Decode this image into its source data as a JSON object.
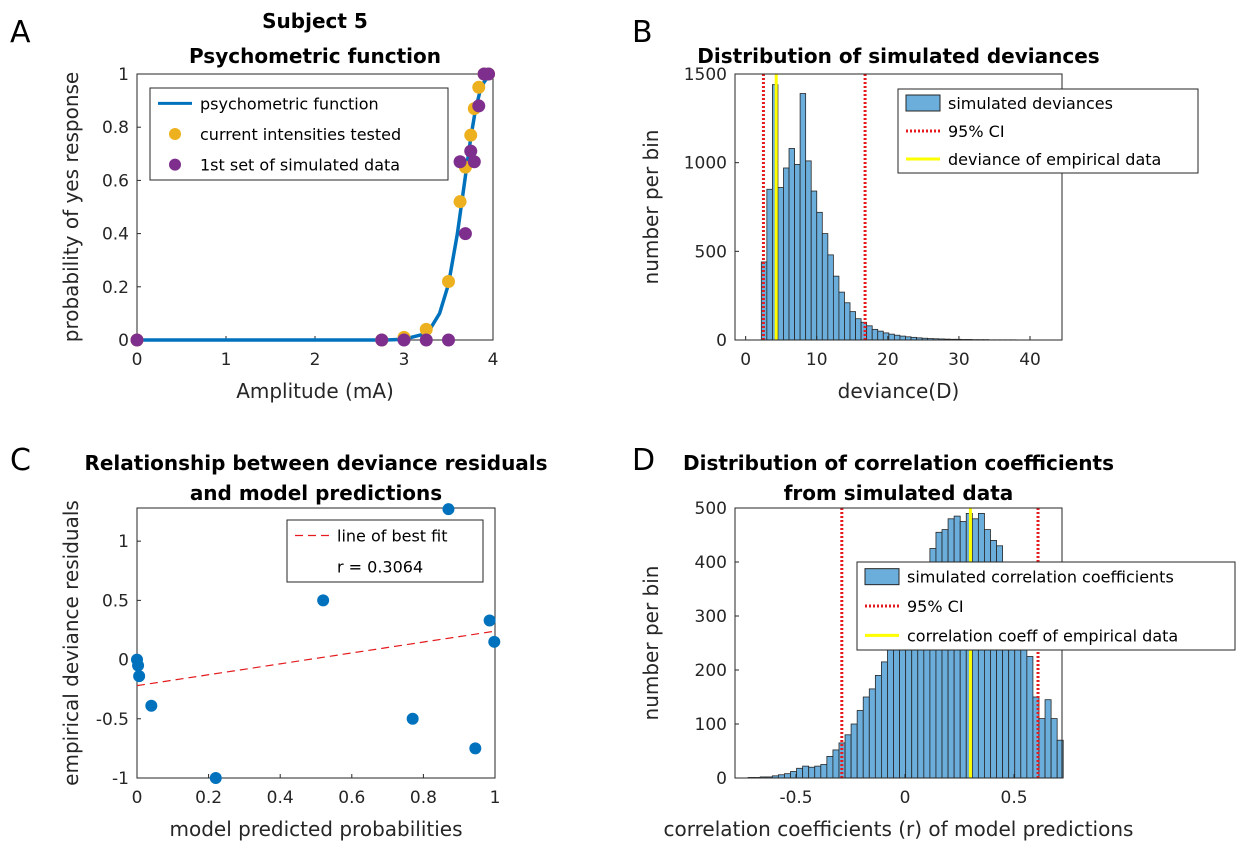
{
  "chart_data": [
    {
      "panel": "A",
      "type": "scatter",
      "title": [
        "Subject 5",
        "Psychometric function"
      ],
      "xlabel": "Amplitude (mA)",
      "ylabel": "probability of yes response",
      "xlim": [
        0,
        4
      ],
      "ylim": [
        0,
        1
      ],
      "xticks": [
        "0",
        "1",
        "2",
        "3",
        "4"
      ],
      "yticks": [
        "0",
        "0.2",
        "0.4",
        "0.6",
        "0.8",
        "1"
      ],
      "legend_position": "top-left",
      "colors": {
        "curve": "#0072BD",
        "tested": "#EDB120",
        "simulated": "#7E2F8E"
      },
      "series": [
        {
          "name": "psychometric function",
          "kind": "line",
          "points": [
            [
              0,
              0
            ],
            [
              2.8,
              0
            ],
            [
              3.0,
              0.003
            ],
            [
              3.2,
              0.02
            ],
            [
              3.3,
              0.045
            ],
            [
              3.4,
              0.1
            ],
            [
              3.5,
              0.21
            ],
            [
              3.6,
              0.4
            ],
            [
              3.65,
              0.52
            ],
            [
              3.7,
              0.64
            ],
            [
              3.75,
              0.76
            ],
            [
              3.8,
              0.86
            ],
            [
              3.85,
              0.93
            ],
            [
              3.9,
              0.97
            ],
            [
              3.95,
              0.99
            ],
            [
              4.0,
              1.0
            ]
          ]
        },
        {
          "name": "current intensities tested",
          "kind": "points",
          "points": [
            [
              0,
              0
            ],
            [
              2.75,
              0
            ],
            [
              3.0,
              0.01
            ],
            [
              3.25,
              0.04
            ],
            [
              3.5,
              0.22
            ],
            [
              3.63,
              0.52
            ],
            [
              3.69,
              0.65
            ],
            [
              3.75,
              0.77
            ],
            [
              3.79,
              0.87
            ],
            [
              3.84,
              0.95
            ],
            [
              3.9,
              1.0
            ],
            [
              3.95,
              1.0
            ]
          ]
        },
        {
          "name": "1st set of simulated data",
          "kind": "points",
          "points": [
            [
              0,
              0
            ],
            [
              2.75,
              0
            ],
            [
              3.0,
              0
            ],
            [
              3.25,
              0
            ],
            [
              3.5,
              0
            ],
            [
              3.63,
              0.67
            ],
            [
              3.69,
              0.4
            ],
            [
              3.75,
              0.71
            ],
            [
              3.79,
              0.67
            ],
            [
              3.84,
              0.88
            ],
            [
              3.9,
              1.0
            ],
            [
              3.95,
              1.0
            ]
          ]
        }
      ]
    },
    {
      "panel": "B",
      "type": "bar",
      "title": [
        "Distribution of simulated deviances"
      ],
      "xlabel": "deviance(D)",
      "ylabel": "number per bin",
      "xlim": [
        -1.5,
        44.5
      ],
      "ylim": [
        0,
        1500
      ],
      "xticks": [
        "0",
        "10",
        "20",
        "30",
        "40"
      ],
      "yticks": [
        "0",
        "500",
        "1000",
        "1500"
      ],
      "legend_position": "top-right",
      "colors": {
        "bar": "#6BAEDC",
        "ci": "#E41A1C",
        "empirical": "#FFFF00"
      },
      "bin_start": 2.2,
      "bin_width": 0.78,
      "counts": [
        440,
        850,
        1440,
        860,
        970,
        1080,
        990,
        1390,
        1010,
        840,
        720,
        600,
        480,
        360,
        270,
        210,
        160,
        120,
        100,
        80,
        60,
        50,
        40,
        33,
        27,
        22,
        18,
        15,
        12,
        10,
        8,
        7,
        6,
        5,
        4,
        4,
        3,
        3,
        2,
        2,
        2,
        1,
        1,
        1,
        1,
        1
      ],
      "ci_lines": [
        2.5,
        16.8
      ],
      "empirical_value": 4.3,
      "legend": [
        "simulated deviances",
        "95% CI",
        "deviance of empirical data"
      ]
    },
    {
      "panel": "C",
      "type": "scatter",
      "title": [
        "Relationship between deviance residuals",
        "and model predictions"
      ],
      "xlabel": "model predicted probabilities",
      "ylabel": "empirical deviance residuals",
      "xlim": [
        0,
        1
      ],
      "ylim": [
        -1,
        1.28
      ],
      "xticks": [
        "0",
        "0.2",
        "0.4",
        "0.6",
        "0.8",
        "1"
      ],
      "yticks": [
        "-1",
        "-0.5",
        "0",
        "0.5",
        "1"
      ],
      "legend_position": "top-right",
      "colors": {
        "points": "#0072BD",
        "fit": "#E41A1C"
      },
      "points": [
        [
          0.0,
          0.0
        ],
        [
          0.003,
          -0.05
        ],
        [
          0.006,
          -0.14
        ],
        [
          0.04,
          -0.39
        ],
        [
          0.22,
          -1.0
        ],
        [
          0.52,
          0.5
        ],
        [
          0.77,
          -0.5
        ],
        [
          0.87,
          1.27
        ],
        [
          0.945,
          -0.75
        ],
        [
          0.985,
          0.33
        ],
        [
          0.998,
          0.15
        ]
      ],
      "fit_line": [
        [
          0,
          -0.22
        ],
        [
          1,
          0.24
        ]
      ],
      "legend": [
        "line of best fit",
        "r = 0.3064"
      ]
    },
    {
      "panel": "D",
      "type": "bar",
      "title": [
        "Distribution of correlation coefficients",
        "from simulated data"
      ],
      "xlabel": "correlation coefficients (r) of model predictions",
      "ylabel": "number per bin",
      "xlim": [
        -0.78,
        0.72
      ],
      "ylim": [
        0,
        500
      ],
      "xticks": [
        "-0.5",
        "0",
        "0.5"
      ],
      "yticks": [
        "0",
        "100",
        "200",
        "300",
        "400",
        "500"
      ],
      "legend_position": "top-right",
      "colors": {
        "bar": "#6BAEDC",
        "ci": "#E41A1C",
        "empirical": "#FFFF00"
      },
      "bin_start": -0.72,
      "bin_width": 0.0278,
      "counts": [
        1,
        1,
        2,
        2,
        4,
        6,
        8,
        12,
        18,
        22,
        20,
        22,
        25,
        40,
        52,
        65,
        80,
        100,
        125,
        150,
        165,
        190,
        215,
        250,
        275,
        300,
        325,
        350,
        375,
        400,
        425,
        455,
        460,
        480,
        485,
        475,
        490,
        480,
        490,
        460,
        440,
        430,
        400,
        380,
        350,
        300,
        225,
        150,
        110,
        145,
        110,
        70
      ],
      "ci_lines": [
        -0.29,
        0.61
      ],
      "empirical_value": 0.3,
      "legend": [
        "simulated correlation coefficients",
        "95% CI",
        "correlation coeff of empirical data"
      ]
    }
  ],
  "panel_letters": [
    "A",
    "B",
    "C",
    "D"
  ]
}
